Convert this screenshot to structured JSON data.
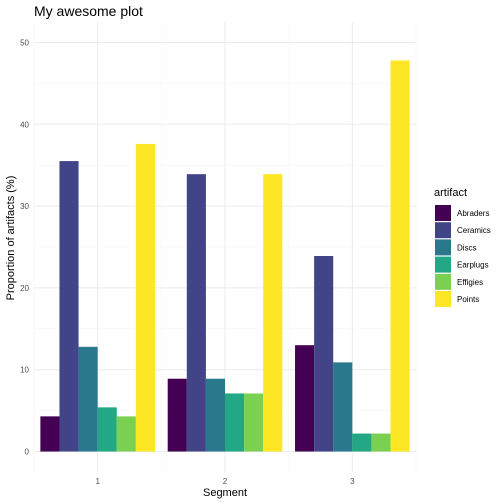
{
  "chart_data": {
    "type": "bar",
    "title": "My awesome plot",
    "xlabel": "Segment",
    "ylabel": "Proportion of artifacts (%)",
    "categories": [
      "1",
      "2",
      "3"
    ],
    "ylim": [
      0,
      50
    ],
    "yticks": [
      "0",
      "10",
      "20",
      "30",
      "40",
      "50"
    ],
    "grid": true,
    "legend": {
      "title": "artifact",
      "position": "right"
    },
    "series": [
      {
        "name": "Abraders",
        "color": "#440154",
        "values": [
          4.3,
          8.9,
          13.0
        ]
      },
      {
        "name": "Ceramics",
        "color": "#414487",
        "values": [
          35.5,
          33.9,
          23.9
        ]
      },
      {
        "name": "Discs",
        "color": "#2A788E",
        "values": [
          12.8,
          8.9,
          10.9
        ]
      },
      {
        "name": "Earplugs",
        "color": "#22A884",
        "values": [
          5.4,
          7.1,
          2.2
        ]
      },
      {
        "name": "Effigies",
        "color": "#7AD151",
        "values": [
          4.3,
          7.1,
          2.2
        ]
      },
      {
        "name": "Points",
        "color": "#FDE725",
        "values": [
          37.6,
          33.9,
          47.8
        ]
      }
    ]
  }
}
